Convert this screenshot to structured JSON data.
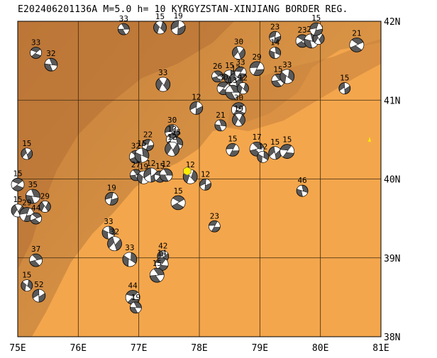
{
  "title": "E202406201136A M=5.0 h= 10 KYRGYZSTAN-XINJIANG BORDER REG.",
  "colors": {
    "land": "#f4a64c",
    "relief": "#c8803a",
    "grid": "#3a2a10",
    "ball_dark": "#5a5a5a",
    "ball_light": "#ffffff",
    "event": "#ffee00"
  },
  "axes": {
    "lon_range": [
      75,
      81
    ],
    "lat_range": [
      38,
      42
    ],
    "lon_labels": [
      "75E",
      "76E",
      "77E",
      "78E",
      "79E",
      "80E",
      "81E"
    ],
    "lat_labels": [
      "42N",
      "41N",
      "40N",
      "39N",
      "38N"
    ]
  },
  "event": {
    "lon": 77.8,
    "lat": 40.1,
    "symbol": "yellow hexagon"
  },
  "mechanisms": [
    {
      "lon": 76.75,
      "lat": 41.9,
      "depth": "33"
    },
    {
      "lon": 77.35,
      "lat": 41.92,
      "depth": "15"
    },
    {
      "lon": 77.65,
      "lat": 41.92,
      "depth": "19"
    },
    {
      "lon": 75.3,
      "lat": 41.6,
      "depth": "33"
    },
    {
      "lon": 75.55,
      "lat": 41.45,
      "depth": "32"
    },
    {
      "lon": 77.4,
      "lat": 41.2,
      "depth": "33"
    },
    {
      "lon": 79.25,
      "lat": 41.8,
      "depth": "23"
    },
    {
      "lon": 79.7,
      "lat": 41.75,
      "depth": "23"
    },
    {
      "lon": 79.85,
      "lat": 41.75,
      "depth": "26"
    },
    {
      "lon": 79.97,
      "lat": 41.78,
      "depth": "33"
    },
    {
      "lon": 79.93,
      "lat": 41.9,
      "depth": "15"
    },
    {
      "lon": 80.6,
      "lat": 41.7,
      "depth": "21"
    },
    {
      "lon": 79.25,
      "lat": 41.6,
      "depth": "14"
    },
    {
      "lon": 78.65,
      "lat": 41.6,
      "depth": "30"
    },
    {
      "lon": 78.95,
      "lat": 41.4,
      "depth": "29"
    },
    {
      "lon": 78.3,
      "lat": 41.3,
      "depth": "26"
    },
    {
      "lon": 78.5,
      "lat": 41.3,
      "depth": "15"
    },
    {
      "lon": 78.6,
      "lat": 41.25,
      "depth": "17"
    },
    {
      "lon": 78.68,
      "lat": 41.35,
      "depth": "33"
    },
    {
      "lon": 79.3,
      "lat": 41.25,
      "depth": "15"
    },
    {
      "lon": 79.45,
      "lat": 41.3,
      "depth": "33"
    },
    {
      "lon": 80.4,
      "lat": 41.15,
      "depth": "15"
    },
    {
      "lon": 78.4,
      "lat": 41.15,
      "depth": "30"
    },
    {
      "lon": 78.55,
      "lat": 41.1,
      "depth": "13"
    },
    {
      "lon": 78.72,
      "lat": 41.15,
      "depth": "12"
    },
    {
      "lon": 77.95,
      "lat": 40.9,
      "depth": "12"
    },
    {
      "lon": 78.65,
      "lat": 40.88,
      "depth": "30"
    },
    {
      "lon": 78.35,
      "lat": 40.68,
      "depth": "21"
    },
    {
      "lon": 78.65,
      "lat": 40.75,
      "depth": "19"
    },
    {
      "lon": 77.55,
      "lat": 40.6,
      "depth": "30"
    },
    {
      "lon": 77.55,
      "lat": 40.5,
      "depth": "13"
    },
    {
      "lon": 77.62,
      "lat": 40.45,
      "depth": "15"
    },
    {
      "lon": 77.55,
      "lat": 40.38,
      "depth": "12"
    },
    {
      "lon": 77.15,
      "lat": 40.43,
      "depth": "22"
    },
    {
      "lon": 76.95,
      "lat": 40.28,
      "depth": "32"
    },
    {
      "lon": 77.05,
      "lat": 40.3,
      "depth": "15"
    },
    {
      "lon": 75.15,
      "lat": 40.32,
      "depth": "15"
    },
    {
      "lon": 78.55,
      "lat": 40.37,
      "depth": "15"
    },
    {
      "lon": 78.95,
      "lat": 40.38,
      "depth": "17"
    },
    {
      "lon": 79.05,
      "lat": 40.28,
      "depth": "12"
    },
    {
      "lon": 79.25,
      "lat": 40.33,
      "depth": "15"
    },
    {
      "lon": 79.45,
      "lat": 40.35,
      "depth": "15"
    },
    {
      "lon": 76.95,
      "lat": 40.05,
      "depth": "27"
    },
    {
      "lon": 77.08,
      "lat": 40.02,
      "depth": "19"
    },
    {
      "lon": 77.2,
      "lat": 40.05,
      "depth": "12"
    },
    {
      "lon": 77.35,
      "lat": 40.03,
      "depth": "15"
    },
    {
      "lon": 77.45,
      "lat": 40.05,
      "depth": "12"
    },
    {
      "lon": 77.85,
      "lat": 40.03,
      "depth": "12"
    },
    {
      "lon": 78.1,
      "lat": 39.93,
      "depth": "12"
    },
    {
      "lon": 75.0,
      "lat": 39.93,
      "depth": "15"
    },
    {
      "lon": 75.25,
      "lat": 39.78,
      "depth": "35"
    },
    {
      "lon": 75.45,
      "lat": 39.65,
      "depth": "29"
    },
    {
      "lon": 76.55,
      "lat": 39.75,
      "depth": "19"
    },
    {
      "lon": 77.65,
      "lat": 39.7,
      "depth": "15"
    },
    {
      "lon": 79.7,
      "lat": 39.85,
      "depth": "46"
    },
    {
      "lon": 75.0,
      "lat": 39.6,
      "depth": "15"
    },
    {
      "lon": 75.15,
      "lat": 39.55,
      "depth": "29"
    },
    {
      "lon": 75.3,
      "lat": 39.5,
      "depth": "44"
    },
    {
      "lon": 76.5,
      "lat": 39.32,
      "depth": "33"
    },
    {
      "lon": 76.6,
      "lat": 39.18,
      "depth": "32"
    },
    {
      "lon": 78.25,
      "lat": 39.4,
      "depth": "23"
    },
    {
      "lon": 75.3,
      "lat": 38.97,
      "depth": "37"
    },
    {
      "lon": 76.85,
      "lat": 38.98,
      "depth": "33"
    },
    {
      "lon": 77.4,
      "lat": 39.02,
      "depth": "42"
    },
    {
      "lon": 77.38,
      "lat": 38.92,
      "depth": "14"
    },
    {
      "lon": 77.3,
      "lat": 38.78,
      "depth": "15"
    },
    {
      "lon": 75.15,
      "lat": 38.65,
      "depth": "15"
    },
    {
      "lon": 75.35,
      "lat": 38.52,
      "depth": "52"
    },
    {
      "lon": 76.9,
      "lat": 38.5,
      "depth": "44"
    },
    {
      "lon": 76.95,
      "lat": 38.37,
      "depth": "19"
    }
  ]
}
